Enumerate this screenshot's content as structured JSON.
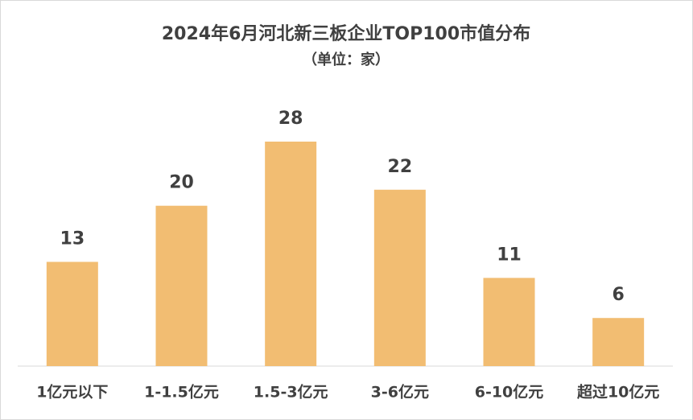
{
  "chart_data": {
    "type": "bar",
    "title": "2024年6月河北新三板企业TOP100市值分布",
    "subtitle": "（单位：家）",
    "categories": [
      "1亿元以下",
      "1-1.5亿元",
      "1.5-3亿元",
      "3-6亿元",
      "6-10亿元",
      "超过10亿元"
    ],
    "values": [
      13,
      20,
      28,
      22,
      11,
      6
    ],
    "color": "#f2bd72"
  }
}
